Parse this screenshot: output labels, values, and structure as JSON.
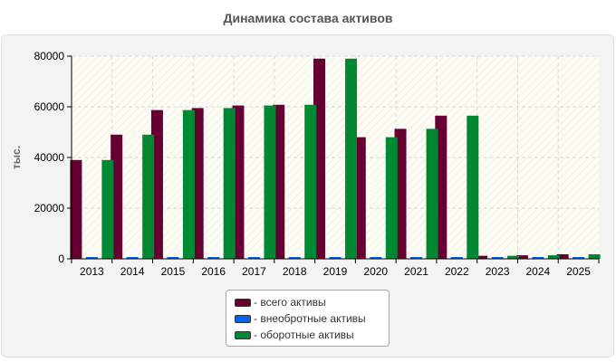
{
  "chart_data": {
    "type": "bar",
    "title": "Динамика состава активов",
    "ylabel": "тыс.",
    "xlabel": "",
    "categories": [
      "2013",
      "2014",
      "2015",
      "2016",
      "2017",
      "2018",
      "2019",
      "2020",
      "2021",
      "2022",
      "2023",
      "2024",
      "2025"
    ],
    "ylim": [
      0,
      80000
    ],
    "yticks": [
      "0",
      "20000",
      "40000",
      "60000",
      "80000"
    ],
    "grid": true,
    "legend_position": "bottom",
    "series": [
      {
        "name": "- всего активы",
        "color": "#660033",
        "values": [
          39000,
          49000,
          58700,
          59500,
          60500,
          60800,
          79000,
          48000,
          51300,
          56500,
          1200,
          1400,
          1800
        ]
      },
      {
        "name": "- внеобротные активы",
        "color": "#0066ee",
        "values": [
          200,
          200,
          200,
          200,
          200,
          200,
          200,
          200,
          200,
          200,
          100,
          100,
          100
        ]
      },
      {
        "name": "- оборотные активы",
        "color": "#008833",
        "values": [
          39000,
          49000,
          58700,
          59500,
          60500,
          60800,
          79000,
          48000,
          51300,
          56500,
          1200,
          1400,
          1800
        ]
      }
    ]
  }
}
